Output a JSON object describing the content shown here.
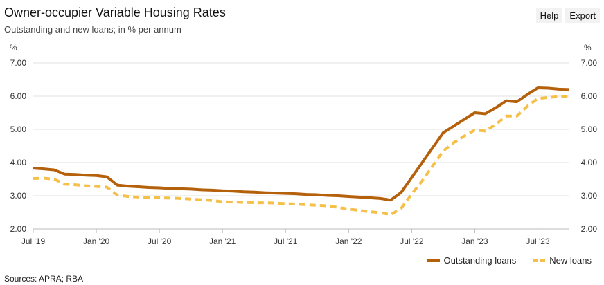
{
  "header": {
    "title": "Owner-occupier Variable Housing Rates",
    "subtitle": "Outstanding and new loans; in % per annum"
  },
  "toolbar": {
    "help_label": "Help",
    "export_label": "Export"
  },
  "footer": {
    "source": "Sources: APRA; RBA"
  },
  "colors": {
    "outstanding": "#b5610b",
    "new": "#f5c04a",
    "axis": "#bbbbbb",
    "grid": "#e2e2e2"
  },
  "chart_data": {
    "type": "line",
    "x_range": [
      "2019-07",
      "2023-10"
    ],
    "xticks": [
      "Jul '19",
      "Jan '20",
      "Jul '20",
      "Jan '21",
      "Jul '21",
      "Jan '22",
      "Jul '22",
      "Jan '23",
      "Jul '23"
    ],
    "ylim": [
      2.0,
      7.0
    ],
    "yticks": [
      "2.00",
      "3.00",
      "4.00",
      "5.00",
      "6.00",
      "7.00"
    ],
    "y_unit_left": "%",
    "y_unit_right": "%",
    "grid": "horizontal",
    "legend_position": "bottom-right",
    "x": [
      "2019-07",
      "2019-08",
      "2019-09",
      "2019-10",
      "2019-11",
      "2019-12",
      "2020-01",
      "2020-02",
      "2020-03",
      "2020-04",
      "2020-05",
      "2020-06",
      "2020-07",
      "2020-08",
      "2020-09",
      "2020-10",
      "2020-11",
      "2020-12",
      "2021-01",
      "2021-02",
      "2021-03",
      "2021-04",
      "2021-05",
      "2021-06",
      "2021-07",
      "2021-08",
      "2021-09",
      "2021-10",
      "2021-11",
      "2021-12",
      "2022-01",
      "2022-02",
      "2022-03",
      "2022-04",
      "2022-05",
      "2022-06",
      "2022-07",
      "2022-08",
      "2022-09",
      "2022-10",
      "2022-11",
      "2022-12",
      "2023-01",
      "2023-02",
      "2023-03",
      "2023-04",
      "2023-05",
      "2023-06",
      "2023-07",
      "2023-08",
      "2023-09",
      "2023-10"
    ],
    "series": [
      {
        "name": "Outstanding loans",
        "style": "solid",
        "values": [
          3.83,
          3.81,
          3.78,
          3.65,
          3.64,
          3.62,
          3.61,
          3.57,
          3.32,
          3.29,
          3.27,
          3.25,
          3.24,
          3.22,
          3.21,
          3.2,
          3.18,
          3.17,
          3.15,
          3.14,
          3.12,
          3.11,
          3.09,
          3.08,
          3.07,
          3.06,
          3.04,
          3.03,
          3.01,
          3.0,
          2.98,
          2.96,
          2.94,
          2.92,
          2.87,
          3.1,
          3.55,
          4.0,
          4.45,
          4.9,
          5.1,
          5.3,
          5.5,
          5.47,
          5.65,
          5.86,
          5.83,
          6.05,
          6.25,
          6.24,
          6.21,
          6.2
        ]
      },
      {
        "name": "New loans",
        "style": "dashed",
        "values": [
          3.52,
          3.53,
          3.5,
          3.35,
          3.33,
          3.3,
          3.28,
          3.26,
          3.02,
          2.98,
          2.96,
          2.95,
          2.94,
          2.93,
          2.92,
          2.9,
          2.88,
          2.86,
          2.82,
          2.81,
          2.8,
          2.79,
          2.79,
          2.78,
          2.76,
          2.75,
          2.73,
          2.71,
          2.7,
          2.65,
          2.6,
          2.56,
          2.52,
          2.49,
          2.43,
          2.62,
          3.05,
          3.45,
          3.9,
          4.35,
          4.6,
          4.8,
          4.98,
          4.95,
          5.15,
          5.4,
          5.4,
          5.7,
          5.93,
          5.96,
          5.99,
          6.0
        ]
      }
    ]
  }
}
